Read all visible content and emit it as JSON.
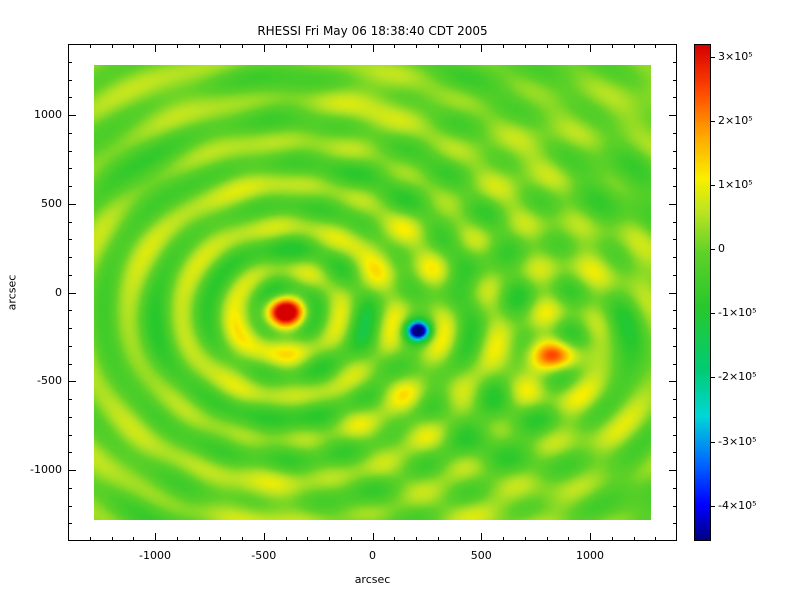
{
  "title": "RHESSI Fri May 06 18:38:40 CDT 2005",
  "axes": {
    "xlabel": "arcsec",
    "ylabel": "arcsec",
    "xrange": [
      -1400,
      1400
    ],
    "yrange": [
      -1400,
      1400
    ],
    "xticks": [
      {
        "value": -1000,
        "label": "-1000"
      },
      {
        "value": -500,
        "label": "-500"
      },
      {
        "value": 0,
        "label": "0"
      },
      {
        "value": 500,
        "label": "500"
      },
      {
        "value": 1000,
        "label": "1000"
      }
    ],
    "yticks": [
      {
        "value": -1000,
        "label": "-1000"
      },
      {
        "value": -500,
        "label": "-500"
      },
      {
        "value": 0,
        "label": "0"
      },
      {
        "value": 500,
        "label": "500"
      },
      {
        "value": 1000,
        "label": "1000"
      }
    ],
    "minor_tick_step": 100
  },
  "colorbar": {
    "vmin": -455000,
    "vmax": 320000,
    "ticks": [
      {
        "value": 300000,
        "label": "3×10⁵"
      },
      {
        "value": 200000,
        "label": "2×10⁵"
      },
      {
        "value": 100000,
        "label": "1×10⁵"
      },
      {
        "value": 0,
        "label": "0"
      },
      {
        "value": -100000,
        "label": "-1×10⁵"
      },
      {
        "value": -200000,
        "label": "-2×10⁵"
      },
      {
        "value": -300000,
        "label": "-3×10⁵"
      },
      {
        "value": -400000,
        "label": "-4×10⁵"
      }
    ]
  },
  "colormap": {
    "stops": [
      {
        "t": 0.0,
        "rgb": [
          0,
          0,
          130
        ]
      },
      {
        "t": 0.07,
        "rgb": [
          0,
          0,
          255
        ]
      },
      {
        "t": 0.16,
        "rgb": [
          0,
          110,
          255
        ]
      },
      {
        "t": 0.25,
        "rgb": [
          0,
          215,
          215
        ]
      },
      {
        "t": 0.34,
        "rgb": [
          0,
          205,
          120
        ]
      },
      {
        "t": 0.47,
        "rgb": [
          40,
          200,
          45
        ]
      },
      {
        "t": 0.58,
        "rgb": [
          95,
          210,
          40
        ]
      },
      {
        "t": 0.66,
        "rgb": [
          185,
          228,
          35
        ]
      },
      {
        "t": 0.73,
        "rgb": [
          250,
          240,
          0
        ]
      },
      {
        "t": 0.82,
        "rgb": [
          255,
          165,
          0
        ]
      },
      {
        "t": 0.91,
        "rgb": [
          255,
          70,
          0
        ]
      },
      {
        "t": 1.0,
        "rgb": [
          215,
          0,
          0
        ]
      }
    ]
  },
  "chart_data": {
    "type": "heatmap",
    "title": "RHESSI Fri May 06 18:38:40 CDT 2005",
    "xlabel": "arcsec",
    "ylabel": "arcsec",
    "description": "RHESSI back-projection solar map: bright source with concentric ring sidelobes, a weaker second source with its own rings, and one deep negative compact point; background near zero (green).",
    "units_xy": "arcsec",
    "extent": {
      "xmin": -1280,
      "xmax": 1280,
      "ymin": -1280,
      "ymax": 1280
    },
    "value_range": [
      -455000,
      320000
    ],
    "background_level": 5000,
    "sources": [
      {
        "name": "primary-source",
        "x": -400,
        "y": -110,
        "peak": 330000,
        "sigma_x": 70,
        "sigma_y": 62,
        "ring_amp": 85000,
        "ring_wavelength": 240,
        "ring_decay": 1500
      },
      {
        "name": "secondary-source",
        "x": 850,
        "y": -355,
        "peak": 175000,
        "sigma_x": 100,
        "sigma_y": 62,
        "ring_amp": 55000,
        "ring_wavelength": 250,
        "ring_decay": 1100
      },
      {
        "name": "negative-compact-source",
        "x": 210,
        "y": -215,
        "peak": -480000,
        "sigma_x": 33,
        "sigma_y": 33,
        "ring_amp": -55000,
        "ring_wavelength": 240,
        "ring_decay": 420
      }
    ],
    "texture": {
      "amp1": 28000,
      "scale1": 175,
      "scale2": 150,
      "amp2": 20000,
      "scale3": 210,
      "scale4": 260
    }
  }
}
